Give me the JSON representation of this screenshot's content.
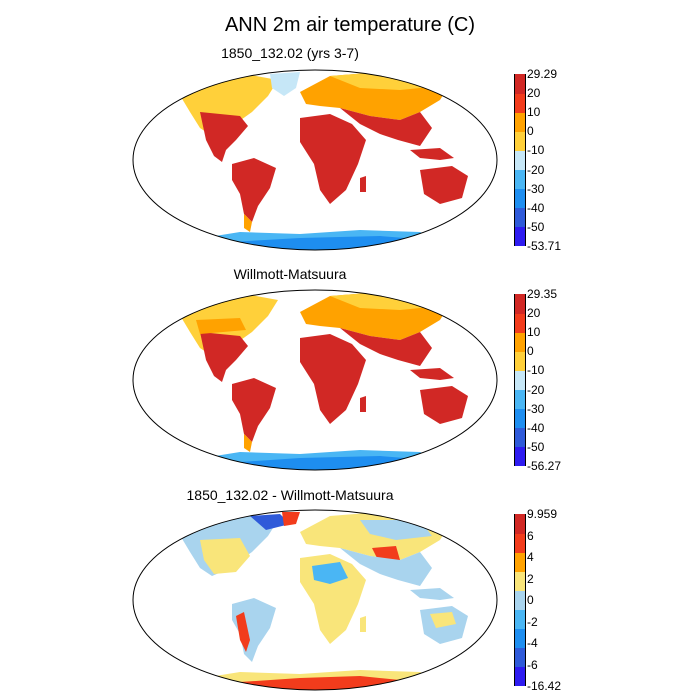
{
  "title": "ANN 2m air temperature (C)",
  "panels": [
    {
      "title": "1850_132.02 (yrs 3-7)",
      "colors": [
        "#2e1cf0",
        "#2f5ad9",
        "#1e8ef0",
        "#4ab6f4",
        "#c6e7f7",
        "#ffd03a",
        "#ffa200",
        "#f23c1c",
        "#d12825"
      ],
      "ticks": [
        "29.29",
        "20",
        "10",
        "0",
        "-10",
        "-20",
        "-30",
        "-40",
        "-50",
        "-53.71"
      ]
    },
    {
      "title": "Willmott-Matsuura",
      "colors": [
        "#2e1cf0",
        "#2f5ad9",
        "#1e8ef0",
        "#4ab6f4",
        "#c6e7f7",
        "#ffd03a",
        "#ffa200",
        "#f23c1c",
        "#d12825"
      ],
      "ticks": [
        "29.35",
        "20",
        "10",
        "0",
        "-10",
        "-20",
        "-30",
        "-40",
        "-50",
        "-56.27"
      ]
    },
    {
      "title": "1850_132.02 - Willmott-Matsuura",
      "colors": [
        "#2e1cf0",
        "#2f5ad9",
        "#1e8ef0",
        "#4ab6f4",
        "#a9d4ee",
        "#f9e57a",
        "#ffa200",
        "#f23c1c",
        "#d12825"
      ],
      "ticks": [
        "9.959",
        "6",
        "4",
        "2",
        "0",
        "-2",
        "-4",
        "-6",
        "-16.42"
      ]
    }
  ]
}
